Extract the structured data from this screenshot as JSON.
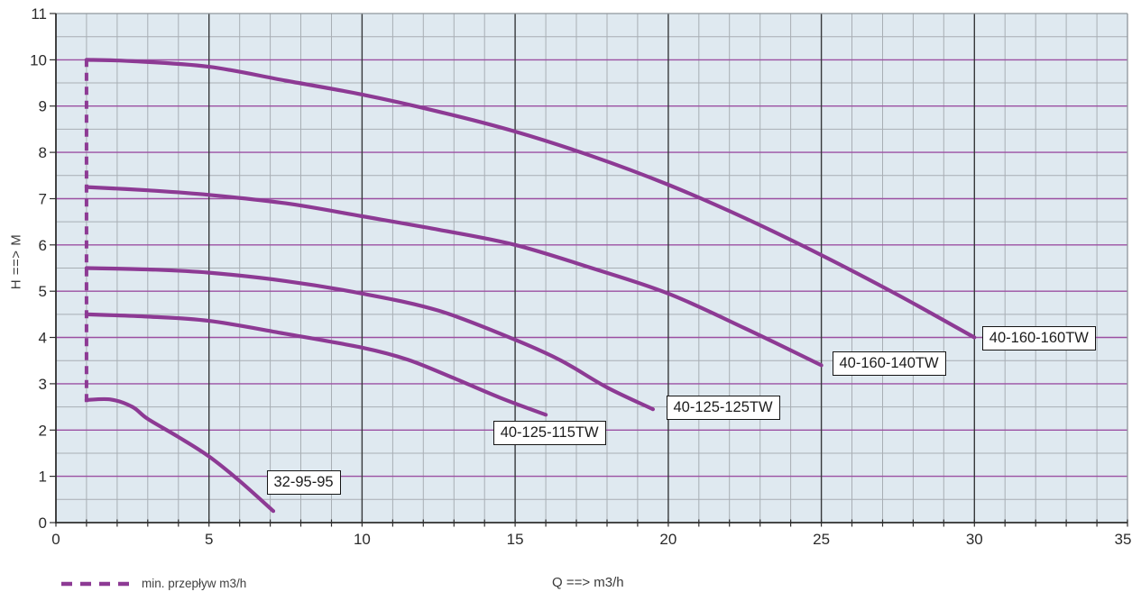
{
  "chart_data": {
    "type": "line",
    "title": "",
    "xlabel": "Q ==> m3/h",
    "ylabel": "H ==> M",
    "xlim": [
      0,
      35
    ],
    "ylim": [
      0,
      11
    ],
    "x_major_ticks": [
      0,
      5,
      10,
      15,
      20,
      25,
      30,
      35
    ],
    "x_minor_step": 1,
    "y_major_ticks": [
      0,
      1,
      2,
      3,
      4,
      5,
      6,
      7,
      8,
      9,
      10,
      11
    ],
    "y_minor_step": 0.5,
    "grid": "on",
    "legend": {
      "position": "bottom-left",
      "entries": [
        {
          "label": "min. przepływ m3/h",
          "style": "dashed"
        }
      ]
    },
    "min_flow_line": {
      "name": "min. przepływ m3/h",
      "style": "dashed",
      "q": 1,
      "h_range": [
        2.6,
        10.02
      ]
    },
    "series": [
      {
        "name": "40-160-160TW",
        "points": [
          [
            1,
            10.0
          ],
          [
            2.5,
            9.97
          ],
          [
            5,
            9.85
          ],
          [
            7.5,
            9.55
          ],
          [
            10,
            9.25
          ],
          [
            12.5,
            8.88
          ],
          [
            15,
            8.45
          ],
          [
            17.5,
            7.92
          ],
          [
            20,
            7.3
          ],
          [
            22.5,
            6.58
          ],
          [
            25,
            5.78
          ],
          [
            27.5,
            4.92
          ],
          [
            30,
            4.0
          ]
        ],
        "label_anchor": {
          "q": 30.25,
          "h": 3.97
        }
      },
      {
        "name": "40-160-140TW",
        "points": [
          [
            1,
            7.25
          ],
          [
            3,
            7.18
          ],
          [
            5,
            7.08
          ],
          [
            7.5,
            6.9
          ],
          [
            10,
            6.62
          ],
          [
            12.5,
            6.33
          ],
          [
            15,
            6.0
          ],
          [
            17.5,
            5.5
          ],
          [
            20,
            4.95
          ],
          [
            22.5,
            4.2
          ],
          [
            25,
            3.4
          ]
        ],
        "label_anchor": {
          "q": 25.35,
          "h": 3.42
        }
      },
      {
        "name": "40-125-125TW",
        "points": [
          [
            1,
            5.5
          ],
          [
            3,
            5.47
          ],
          [
            5,
            5.4
          ],
          [
            7.5,
            5.22
          ],
          [
            10,
            4.95
          ],
          [
            12.5,
            4.58
          ],
          [
            15,
            3.95
          ],
          [
            16.5,
            3.5
          ],
          [
            18,
            2.92
          ],
          [
            19.5,
            2.45
          ]
        ],
        "label_anchor": {
          "q": 19.93,
          "h": 2.47
        }
      },
      {
        "name": "40-125-115TW",
        "points": [
          [
            1,
            4.5
          ],
          [
            3,
            4.45
          ],
          [
            5,
            4.36
          ],
          [
            7.5,
            4.08
          ],
          [
            10,
            3.78
          ],
          [
            11.5,
            3.52
          ],
          [
            13,
            3.12
          ],
          [
            14.5,
            2.7
          ],
          [
            16,
            2.33
          ]
        ],
        "label_anchor": {
          "q": 14.28,
          "h": 1.93
        }
      },
      {
        "name": "32-95-95",
        "points": [
          [
            1,
            2.65
          ],
          [
            1.8,
            2.66
          ],
          [
            2.5,
            2.5
          ],
          [
            3,
            2.24
          ],
          [
            4,
            1.85
          ],
          [
            5,
            1.43
          ],
          [
            6,
            0.9
          ],
          [
            7.1,
            0.25
          ]
        ],
        "label_anchor": {
          "q": 6.88,
          "h": 0.85
        }
      }
    ]
  },
  "colors": {
    "curve": "#8d3a94",
    "major_grid_h": "#9b50a2",
    "minor_grid": "#a8aeb4",
    "major_grid_v": "#37393b",
    "plot_bg": "#dfe9f0",
    "frame": "#8f969c",
    "axis": "#2e2e2e",
    "tick_text": "#2b2b2b",
    "label_box_border": "#141414",
    "label_box_bg": "#ffffff"
  }
}
